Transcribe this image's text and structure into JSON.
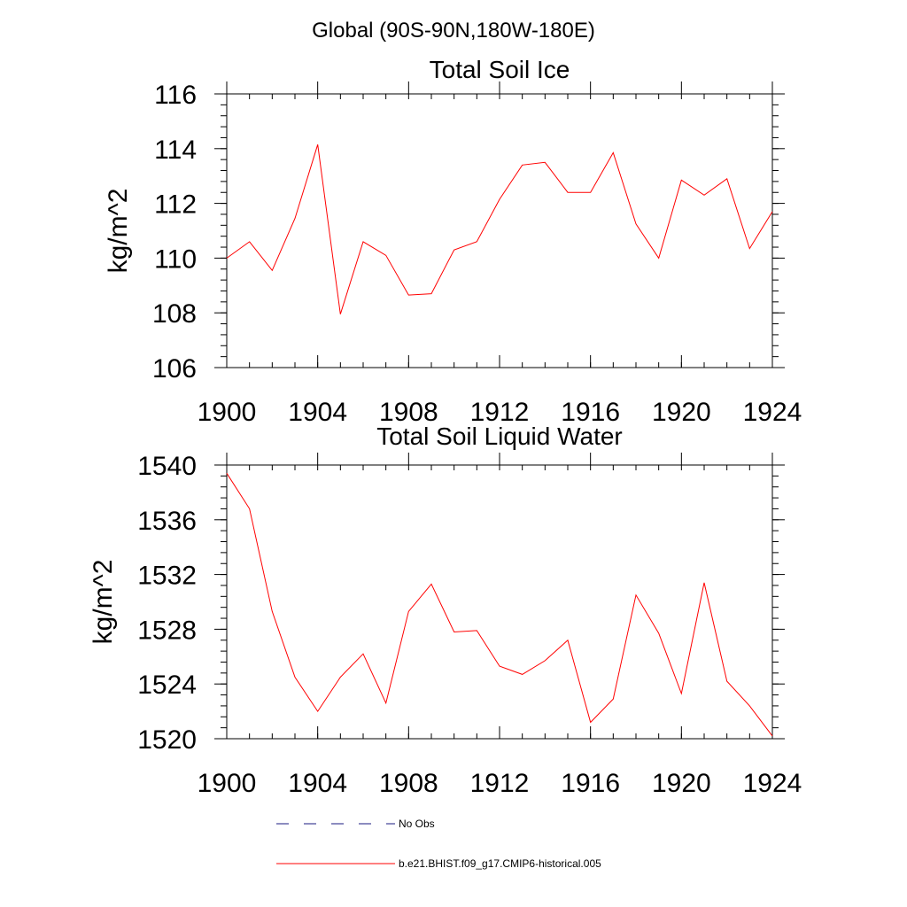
{
  "page_title": "Global (90S-90N,180W-180E)",
  "colors": {
    "series": "#ff0000",
    "no_obs": "#1a1a80",
    "axis": "#000000"
  },
  "legend": [
    {
      "label": "No Obs",
      "style": "dashed",
      "color": "#1a1a80"
    },
    {
      "label": "b.e21.BHIST.f09_g17.CMIP6-historical.005",
      "style": "solid",
      "color": "#ff0000"
    }
  ],
  "chart_data": [
    {
      "type": "line",
      "title": "Total Soil Ice",
      "xlabel": "",
      "ylabel": "kg/m^2",
      "xlim": [
        1900,
        1924
      ],
      "ylim": [
        106,
        116
      ],
      "xticks": [
        1900,
        1904,
        1908,
        1912,
        1916,
        1920,
        1924
      ],
      "xtick_labels": [
        "1900",
        "1904",
        "1908",
        "1912",
        "1916",
        "1920",
        "1924"
      ],
      "yticks": [
        106,
        108,
        110,
        112,
        114,
        116
      ],
      "ytick_labels": [
        "106",
        "108",
        "110",
        "112",
        "114",
        "116"
      ],
      "series": [
        {
          "name": "b.e21.BHIST.f09_g17.CMIP6-historical.005",
          "x": [
            1900,
            1901,
            1902,
            1903,
            1904,
            1905,
            1906,
            1907,
            1908,
            1909,
            1910,
            1911,
            1912,
            1913,
            1914,
            1915,
            1916,
            1917,
            1918,
            1919,
            1920,
            1921,
            1922,
            1923,
            1924
          ],
          "values": [
            110.0,
            110.6,
            109.55,
            111.45,
            114.15,
            107.95,
            110.6,
            110.1,
            108.65,
            108.7,
            110.3,
            110.6,
            112.15,
            113.4,
            113.5,
            112.4,
            112.4,
            113.85,
            111.25,
            110.0,
            112.85,
            112.3,
            112.9,
            110.35,
            111.7
          ]
        }
      ]
    },
    {
      "type": "line",
      "title": "Total Soil Liquid Water",
      "xlabel": "",
      "ylabel": "kg/m^2",
      "xlim": [
        1900,
        1924
      ],
      "ylim": [
        1520,
        1540
      ],
      "xticks": [
        1900,
        1904,
        1908,
        1912,
        1916,
        1920,
        1924
      ],
      "xtick_labels": [
        "1900",
        "1904",
        "1908",
        "1912",
        "1916",
        "1920",
        "1924"
      ],
      "yticks": [
        1520,
        1524,
        1528,
        1532,
        1536,
        1540
      ],
      "ytick_labels": [
        "1520",
        "1524",
        "1528",
        "1532",
        "1536",
        "1540"
      ],
      "series": [
        {
          "name": "b.e21.BHIST.f09_g17.CMIP6-historical.005",
          "x": [
            1900,
            1901,
            1902,
            1903,
            1904,
            1905,
            1906,
            1907,
            1908,
            1909,
            1910,
            1911,
            1912,
            1913,
            1914,
            1915,
            1916,
            1917,
            1918,
            1919,
            1920,
            1921,
            1922,
            1923,
            1924
          ],
          "values": [
            1539.4,
            1536.8,
            1529.3,
            1524.5,
            1522.0,
            1524.5,
            1526.2,
            1522.6,
            1529.3,
            1531.3,
            1527.8,
            1527.9,
            1525.3,
            1524.7,
            1525.7,
            1527.2,
            1521.2,
            1522.9,
            1530.5,
            1527.7,
            1523.3,
            1531.4,
            1524.2,
            1522.4,
            1520.2
          ]
        }
      ]
    }
  ]
}
